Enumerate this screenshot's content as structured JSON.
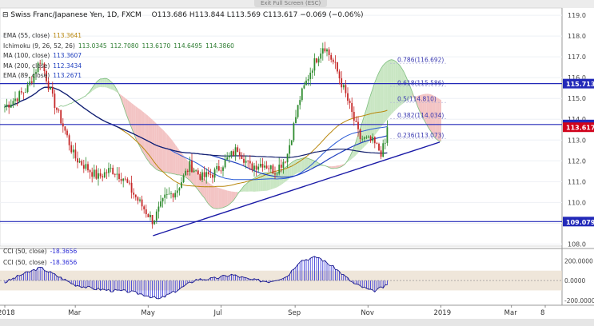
{
  "window": {
    "exit_label": "Exit Full Screen (ESC)"
  },
  "header": {
    "symbol": "Swiss Franc/Japanese Yen, 1D, FXCM",
    "open": "O113.686",
    "high": "H113.844",
    "low": "L113.569",
    "close": "C113.617",
    "change": "−0.069 (−0.06%)"
  },
  "indicators": [
    {
      "label": "EMA (55, close)",
      "values": [
        "113.3641"
      ],
      "color": "#b8860b"
    },
    {
      "label": "Ichimoku (9, 26, 52, 26)",
      "values": [
        "113.0345",
        "112.7080",
        "113.6170",
        "114.6495",
        "114.3860"
      ],
      "color": "#2e7d32"
    },
    {
      "label": "MA (100, close)",
      "values": [
        "113.3607"
      ],
      "color": "#1f3fbf"
    },
    {
      "label": "MA (200, close)",
      "values": [
        "112.3434"
      ],
      "color": "#1f3fbf"
    },
    {
      "label": "EMA (89, close)",
      "values": [
        "113.2671"
      ],
      "color": "#1f3fbf"
    }
  ],
  "cci": {
    "label": "CCI (50, close)",
    "value": "-18.3656",
    "label2": "CCI (50, close)",
    "value2": "-18.3656"
  },
  "chart_data": {
    "type": "candlestick",
    "x_labels": [
      "2018",
      "Mar",
      "May",
      "Jul",
      "Sep",
      "Nov",
      "2019",
      "Mar",
      "8"
    ],
    "y_ticks": [
      108.0,
      109.0,
      110.0,
      111.0,
      112.0,
      113.0,
      114.0,
      115.0,
      116.0,
      117.0,
      118.0,
      119.0
    ],
    "ylim": [
      107.9,
      119.35
    ],
    "close_path": [
      [
        "2018-01-01",
        114.6
      ],
      [
        "2018-01-10",
        115.0
      ],
      [
        "2018-01-20",
        115.5
      ],
      [
        "2018-01-31",
        116.9
      ],
      [
        "2018-02-10",
        115.0
      ],
      [
        "2018-02-20",
        113.5
      ],
      [
        "2018-02-28",
        112.2
      ],
      [
        "2018-03-10",
        111.7
      ],
      [
        "2018-03-20",
        111.2
      ],
      [
        "2018-03-31",
        111.6
      ],
      [
        "2018-04-10",
        111.2
      ],
      [
        "2018-04-20",
        110.3
      ],
      [
        "2018-04-30",
        109.5
      ],
      [
        "2018-05-05",
        109.1
      ],
      [
        "2018-05-15",
        110.2
      ],
      [
        "2018-05-25",
        110.6
      ],
      [
        "2018-06-05",
        111.8
      ],
      [
        "2018-06-15",
        111.2
      ],
      [
        "2018-06-25",
        111.4
      ],
      [
        "2018-07-05",
        112.0
      ],
      [
        "2018-07-15",
        112.6
      ],
      [
        "2018-07-25",
        111.7
      ],
      [
        "2018-08-05",
        111.9
      ],
      [
        "2018-08-15",
        111.5
      ],
      [
        "2018-08-25",
        112.2
      ],
      [
        "2018-09-05",
        115.0
      ],
      [
        "2018-09-15",
        116.5
      ],
      [
        "2018-09-25",
        117.6
      ],
      [
        "2018-10-05",
        116.5
      ],
      [
        "2018-10-15",
        114.9
      ],
      [
        "2018-10-25",
        113.1
      ],
      [
        "2018-11-05",
        112.9
      ],
      [
        "2018-11-12",
        112.4
      ],
      [
        "2018-11-19",
        113.3
      ],
      [
        "2018-11-25",
        113.617
      ]
    ],
    "price_labels": [
      {
        "value": 115.713,
        "text": "115.713",
        "color": "#2229b8"
      },
      {
        "value": 113.747,
        "text": "113.747",
        "color": "#2229b8"
      },
      {
        "value": 113.617,
        "text": "113.617",
        "color": "#d0021b"
      },
      {
        "value": 109.079,
        "text": "109.079",
        "color": "#2229b8"
      }
    ],
    "horizontal_lines": [
      115.713,
      113.747,
      109.079
    ],
    "fibonacci": [
      {
        "value": 116.692,
        "text": "0.786(116.692)"
      },
      {
        "value": 115.586,
        "text": "0.618(115.586)"
      },
      {
        "value": 114.81,
        "text": "0.5(114.810)"
      },
      {
        "value": 114.034,
        "text": "0.382(114.034)"
      },
      {
        "value": 113.073,
        "text": "0.236(113.073)"
      }
    ],
    "trendline": {
      "from": [
        "2018-05-05",
        108.4
      ],
      "to": [
        "2018-12-31",
        112.9
      ]
    },
    "cci_ticks": [
      {
        "value": 200,
        "text": "200.0000"
      },
      {
        "value": 0,
        "text": "0.0000"
      },
      {
        "value": -200,
        "text": "-200.0000"
      }
    ],
    "cci_path": [
      [
        "2018-01-01",
        -20
      ],
      [
        "2018-01-15",
        60
      ],
      [
        "2018-01-31",
        130
      ],
      [
        "2018-02-15",
        40
      ],
      [
        "2018-02-28",
        -40
      ],
      [
        "2018-03-15",
        -80
      ],
      [
        "2018-03-31",
        -100
      ],
      [
        "2018-04-15",
        -110
      ],
      [
        "2018-04-30",
        -150
      ],
      [
        "2018-05-10",
        -190
      ],
      [
        "2018-05-25",
        -100
      ],
      [
        "2018-06-10",
        10
      ],
      [
        "2018-06-25",
        20
      ],
      [
        "2018-07-10",
        60
      ],
      [
        "2018-07-25",
        10
      ],
      [
        "2018-08-10",
        -10
      ],
      [
        "2018-08-25",
        40
      ],
      [
        "2018-09-05",
        200
      ],
      [
        "2018-09-20",
        240
      ],
      [
        "2018-10-05",
        120
      ],
      [
        "2018-10-20",
        -30
      ],
      [
        "2018-11-05",
        -110
      ],
      [
        "2018-11-15",
        -60
      ],
      [
        "2018-11-25",
        -18
      ]
    ],
    "bands": {
      "cci_upper": 100,
      "cci_lower": -100
    }
  },
  "colors": {
    "bull": "#2e8b2e",
    "bear": "#c62828",
    "hline": "#2229b8",
    "trend": "#1a1aa6",
    "ema55": "#b8860b",
    "ma100": "#1f3fbf",
    "ma200": "#1f3fbf",
    "ema89": "#2a5bd7",
    "cloud_bull": "#c9e6c3",
    "cloud_bear": "#f3c4c4",
    "cci": "#2b2bd6",
    "band": "#e8dccb"
  }
}
